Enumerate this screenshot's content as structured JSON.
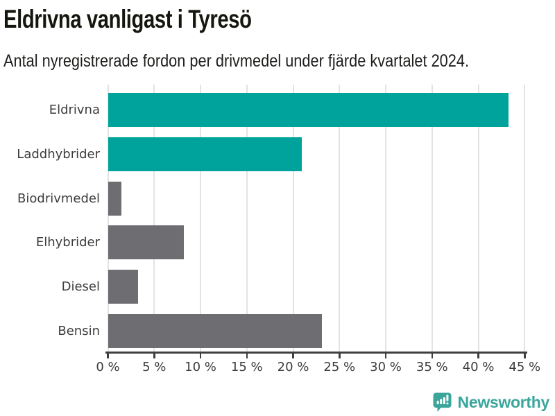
{
  "header": {
    "title": "Eldrivna vanligast i Tyresö",
    "subtitle": "Antal nyregistrerade fordon per drivmedel under fjärde kvartalet 2024."
  },
  "chart_data": {
    "type": "bar",
    "orientation": "horizontal",
    "title": "Eldrivna vanligast i Tyresö",
    "subtitle": "Antal nyregistrerade fordon per drivmedel under fjärde kvartalet 2024.",
    "categories": [
      "Eldrivna",
      "Laddhybrider",
      "Biodrivmedel",
      "Elhybrider",
      "Diesel",
      "Bensin"
    ],
    "values": [
      43.2,
      20.9,
      1.4,
      8.2,
      3.2,
      23.1
    ],
    "unit": "%",
    "bar_colors": [
      "#00a39b",
      "#00a39b",
      "#6d6d72",
      "#6d6d72",
      "#6d6d72",
      "#6d6d72"
    ],
    "xlim": [
      0,
      45
    ],
    "xticks": [
      0,
      5,
      10,
      15,
      20,
      25,
      30,
      35,
      40,
      45
    ],
    "xtick_labels": [
      "0 %",
      "5 %",
      "10 %",
      "15 %",
      "20 %",
      "25 %",
      "30 %",
      "35 %",
      "40 %",
      "45 %"
    ],
    "grid": "vertical",
    "legend": "none"
  },
  "footer": {
    "brand_name": "Newsworthy",
    "logo_icon": "newsworthy-bar-chart-bubble-icon"
  },
  "colors": {
    "bar_teal": "#00a39b",
    "bar_gray": "#6d6d72",
    "gridline": "#e3e3e3",
    "axis": "#3f3f3f",
    "label_text": "#3c3c3c",
    "title_text": "#16160f",
    "logo_teal": "#3aa69b"
  }
}
